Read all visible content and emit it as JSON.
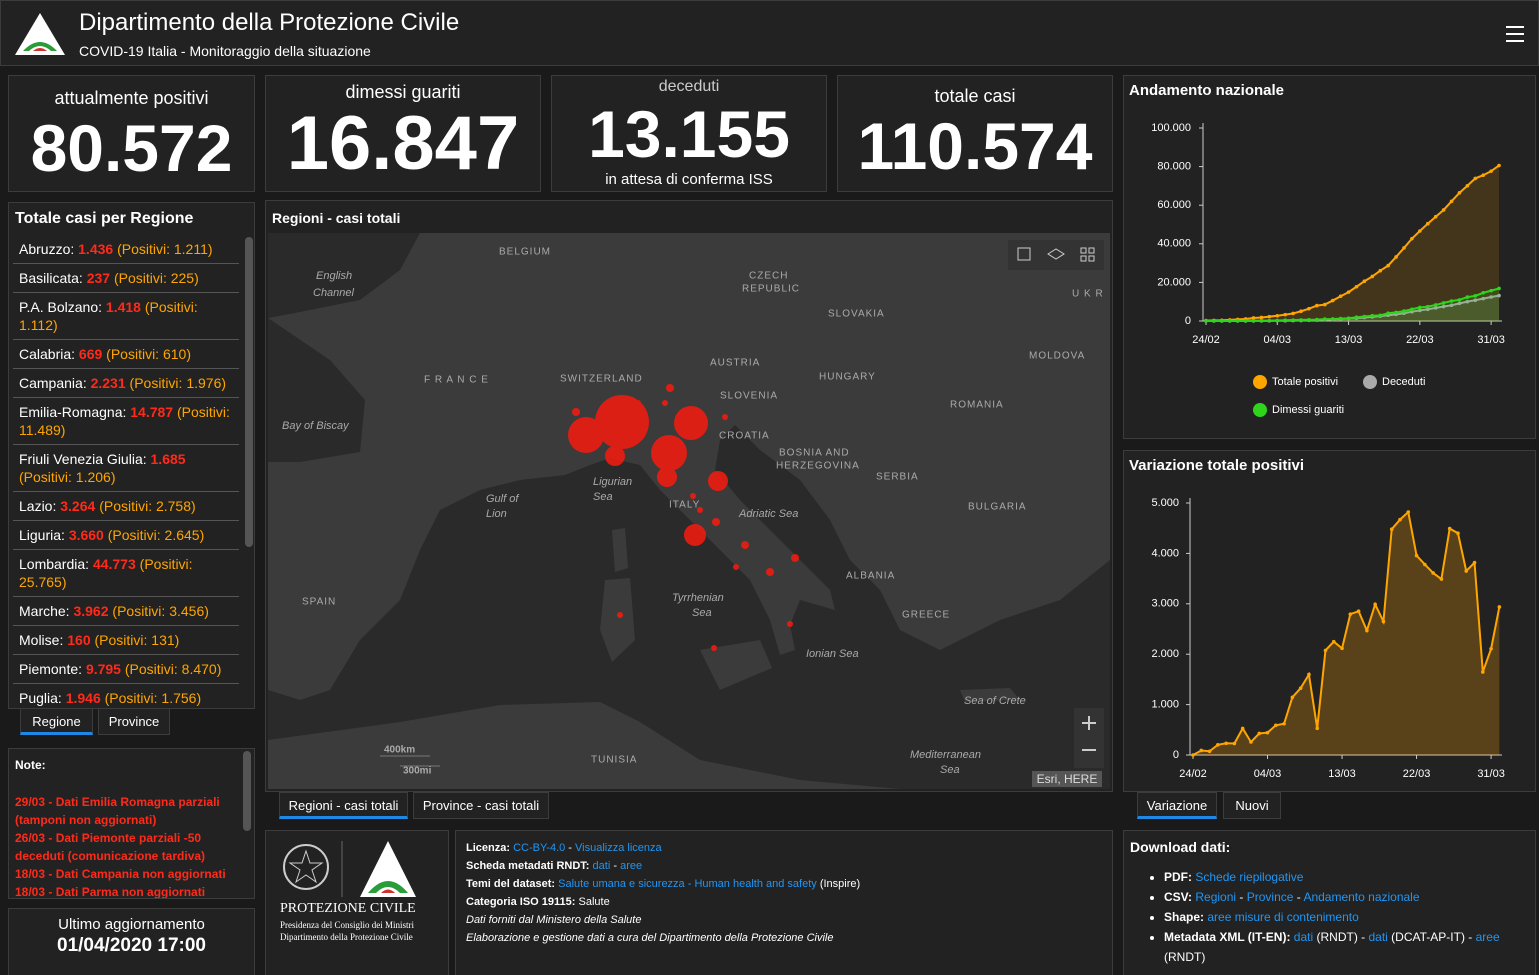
{
  "header": {
    "title": "Dipartimento della Protezione Civile",
    "subtitle": "COVID-19 Italia - Monitoraggio della situazione"
  },
  "kpis": [
    {
      "label": "attualmente positivi",
      "value": "80.572",
      "color": "#ffa500"
    },
    {
      "label": "dimessi guariti",
      "value": "16.847",
      "color": "#3ddc1a"
    },
    {
      "label": "deceduti",
      "value": "13.155",
      "color": "#d9d9d9",
      "note": "in attesa di conferma ISS"
    },
    {
      "label": "totale casi",
      "value": "110.574",
      "color": "#ff2a1a"
    }
  ],
  "regions": {
    "title": "Totale casi per Regione",
    "items": [
      {
        "name": "Abruzzo:",
        "total": "1.436",
        "positives": "(Positivi: 1.211)"
      },
      {
        "name": "Basilicata:",
        "total": "237",
        "positives": "(Positivi: 225)"
      },
      {
        "name": "P.A. Bolzano:",
        "total": "1.418",
        "positives": "(Positivi: 1.112)"
      },
      {
        "name": "Calabria:",
        "total": "669",
        "positives": "(Positivi: 610)"
      },
      {
        "name": "Campania:",
        "total": "2.231",
        "positives": "(Positivi: 1.976)"
      },
      {
        "name": "Emilia-Romagna:",
        "total": "14.787",
        "positives": "(Positivi: 11.489)"
      },
      {
        "name": "Friuli Venezia Giulia:",
        "total": "1.685",
        "positives": "(Positivi: 1.206)"
      },
      {
        "name": "Lazio:",
        "total": "3.264",
        "positives": "(Positivi: 2.758)"
      },
      {
        "name": "Liguria:",
        "total": "3.660",
        "positives": "(Positivi: 2.645)"
      },
      {
        "name": "Lombardia:",
        "total": "44.773",
        "positives": "(Positivi: 25.765)"
      },
      {
        "name": "Marche:",
        "total": "3.962",
        "positives": "(Positivi: 3.456)"
      },
      {
        "name": "Molise:",
        "total": "160",
        "positives": "(Positivi: 131)"
      },
      {
        "name": "Piemonte:",
        "total": "9.795",
        "positives": "(Positivi: 8.470)"
      },
      {
        "name": "Puglia:",
        "total": "1.946",
        "positives": "(Positivi: 1.756)"
      }
    ],
    "tabs": [
      "Regione",
      "Province"
    ]
  },
  "notes": {
    "title": "Note:",
    "items": [
      "29/03 - Dati  Emilia Romagna parziali (tamponi non aggiornati)",
      "26/03 - Dati Piemonte parziali -50 deceduti (comunicazione tardiva)",
      "18/03 - Dati Campania non aggiornati",
      "18/03 - Dati Parma non aggiornati"
    ]
  },
  "update": {
    "label": "Ultimo aggiornamento",
    "value": "01/04/2020 17:00"
  },
  "map": {
    "title": "Regioni - casi totali",
    "labels": [
      "BELGIUM",
      "English",
      "Channel",
      "CZECH",
      "REPUBLIC",
      "U K R",
      "SLOVAKIA",
      "F R A N C E",
      "SWITZERLAND",
      "AUSTRIA",
      "HUNGARY",
      "MOLDOVA",
      "SLOVENIA",
      "ROMANIA",
      "Bay of Biscay",
      "CROATIA",
      "BOSNIA AND",
      "HERZEGOVINA",
      "Ligurian",
      "Sea",
      "SERBIA",
      "Gulf of",
      "Lion",
      "ITALY",
      "Adriatic Sea",
      "BULGARIA",
      "ALBANIA",
      "SPAIN",
      "Tyrrhenian",
      "Sea",
      "GREECE",
      "Ionian Sea",
      "Sea of Crete",
      "TUNISIA",
      "Mediterranean",
      "Sea"
    ],
    "scale": [
      "400km",
      "300mi"
    ],
    "attribution": "Esri, HERE",
    "tabs": [
      "Regioni - casi totali",
      "Province - casi totali"
    ]
  },
  "logo": {
    "name": "PROTEZIONE CIVILE",
    "lines": [
      "Presidenza del Consiglio dei Ministri",
      "Dipartimento della Protezione Civile"
    ]
  },
  "license": {
    "lines": [
      {
        "key": "Licenza:",
        "parts": [
          {
            "text": "CC-BY-4.0",
            "link": true
          },
          {
            "text": " - ",
            "link": false
          },
          {
            "text": "Visualizza licenza",
            "link": true
          }
        ]
      },
      {
        "key": "Scheda metadati RNDT:",
        "parts": [
          {
            "text": "dati",
            "link": true
          },
          {
            "text": " - ",
            "link": false
          },
          {
            "text": "aree",
            "link": true
          }
        ]
      },
      {
        "key": "Temi del dataset:",
        "parts": [
          {
            "text": "Salute umana e sicurezza - Human health and safety",
            "link": true
          },
          {
            "text": " (Inspire)",
            "link": false
          }
        ]
      },
      {
        "key": "Categoria ISO 19115:",
        "parts": [
          {
            "text": "Salute",
            "link": false
          }
        ]
      },
      {
        "italic": true,
        "parts": [
          {
            "text": "Dati forniti dal Ministero della Salute",
            "link": false
          }
        ]
      },
      {
        "italic": true,
        "parts": [
          {
            "text": "Elaborazione e gestione dati a cura del Dipartimento della Protezione Civile",
            "link": false
          }
        ]
      }
    ]
  },
  "download": {
    "title": "Download dati:",
    "items": [
      {
        "key": "PDF:",
        "parts": [
          {
            "text": "Schede riepilogative",
            "link": true
          }
        ]
      },
      {
        "key": "CSV:",
        "parts": [
          {
            "text": "Regioni",
            "link": true
          },
          {
            "text": " - ",
            "link": false
          },
          {
            "text": "Province",
            "link": true
          },
          {
            "text": " - ",
            "link": false
          },
          {
            "text": "Andamento nazionale",
            "link": true
          }
        ]
      },
      {
        "key": "Shape:",
        "parts": [
          {
            "text": "aree misure di contenimento",
            "link": true
          }
        ]
      },
      {
        "key": "Metadata XML (IT-EN):",
        "parts": [
          {
            "text": "dati",
            "link": true
          },
          {
            "text": " (RNDT) - ",
            "link": false
          },
          {
            "text": "dati",
            "link": true
          },
          {
            "text": " (DCAT-AP-IT) - ",
            "link": false
          },
          {
            "text": "aree",
            "link": true
          },
          {
            "text": " (RNDT)",
            "link": false
          }
        ]
      }
    ]
  },
  "chart_tabs": [
    "Variazione",
    "Nuovi"
  ],
  "chart_data": [
    {
      "type": "line",
      "title": "Andamento nazionale",
      "area": true,
      "legend": "bottom",
      "categories": [
        "24/02",
        null,
        null,
        null,
        null,
        null,
        null,
        null,
        null,
        "04/03",
        null,
        null,
        null,
        null,
        null,
        null,
        null,
        null,
        "13/03",
        null,
        null,
        null,
        null,
        null,
        null,
        null,
        null,
        "22/03",
        null,
        null,
        null,
        null,
        null,
        null,
        null,
        null,
        "31/03",
        null
      ],
      "ylim": [
        0,
        100000
      ],
      "yticks": [
        0,
        {
          "value": 20000,
          "label": "20.000"
        },
        {
          "value": 40000,
          "label": "40.000"
        },
        {
          "value": 60000,
          "label": "60.000"
        },
        {
          "value": 80000,
          "label": "80.000"
        },
        {
          "value": 100000,
          "label": "100.000"
        }
      ],
      "series": [
        {
          "name": "Totale positivi",
          "color": "#ffa500",
          "values": [
            221,
            311,
            385,
            588,
            821,
            1049,
            1577,
            1835,
            2263,
            2706,
            3296,
            3916,
            5061,
            6387,
            7985,
            8514,
            10590,
            12839,
            14955,
            17750,
            20603,
            23073,
            26062,
            28710,
            33190,
            37860,
            42681,
            46638,
            50418,
            54030,
            57521,
            62013,
            66414,
            70065,
            73880,
            75528,
            77635,
            80572
          ]
        },
        {
          "name": "Deceduti",
          "color": "#aaaaaa",
          "values": [
            7,
            10,
            12,
            17,
            21,
            29,
            34,
            52,
            79,
            107,
            148,
            197,
            233,
            366,
            463,
            631,
            827,
            1016,
            1266,
            1441,
            1809,
            2158,
            2503,
            2978,
            3405,
            4032,
            4825,
            5476,
            6077,
            6820,
            7503,
            8165,
            9134,
            10023,
            10779,
            11591,
            12428,
            13155
          ]
        },
        {
          "name": "Dimessi guariti",
          "color": "#2ed51a",
          "values": [
            1,
            1,
            3,
            45,
            46,
            50,
            83,
            149,
            160,
            276,
            414,
            523,
            589,
            622,
            724,
            1004,
            1045,
            1258,
            1439,
            1966,
            2335,
            2749,
            2941,
            4025,
            4440,
            5129,
            6072,
            7024,
            7432,
            8326,
            9362,
            10361,
            10950,
            12384,
            13030,
            14620,
            15729,
            16847
          ]
        }
      ]
    },
    {
      "type": "line",
      "title": "Variazione totale positivi",
      "area": true,
      "categories": [
        "24/02",
        null,
        null,
        null,
        null,
        null,
        null,
        null,
        null,
        "04/03",
        null,
        null,
        null,
        null,
        null,
        null,
        null,
        null,
        "13/03",
        null,
        null,
        null,
        null,
        null,
        null,
        null,
        null,
        "22/03",
        null,
        null,
        null,
        null,
        null,
        null,
        null,
        null,
        "31/03",
        null
      ],
      "ylim": [
        0,
        5000
      ],
      "yticks": [
        0,
        {
          "value": 1000,
          "label": "1.000"
        },
        {
          "value": 2000,
          "label": "2.000"
        },
        {
          "value": 3000,
          "label": "3.000"
        },
        {
          "value": 4000,
          "label": "4.000"
        },
        {
          "value": 5000,
          "label": "5.000"
        }
      ],
      "series": [
        {
          "color": "#ffa500",
          "values": [
            0,
            90,
            74,
            203,
            233,
            228,
            528,
            258,
            428,
            443,
            590,
            620,
            1145,
            1326,
            1598,
            529,
            2076,
            2249,
            2116,
            2795,
            2853,
            2470,
            2989,
            2648,
            4480,
            4670,
            4821,
            3957,
            3780,
            3612,
            3491,
            4492,
            4401,
            3651,
            3815,
            1648,
            2107,
            2937
          ]
        }
      ]
    }
  ]
}
